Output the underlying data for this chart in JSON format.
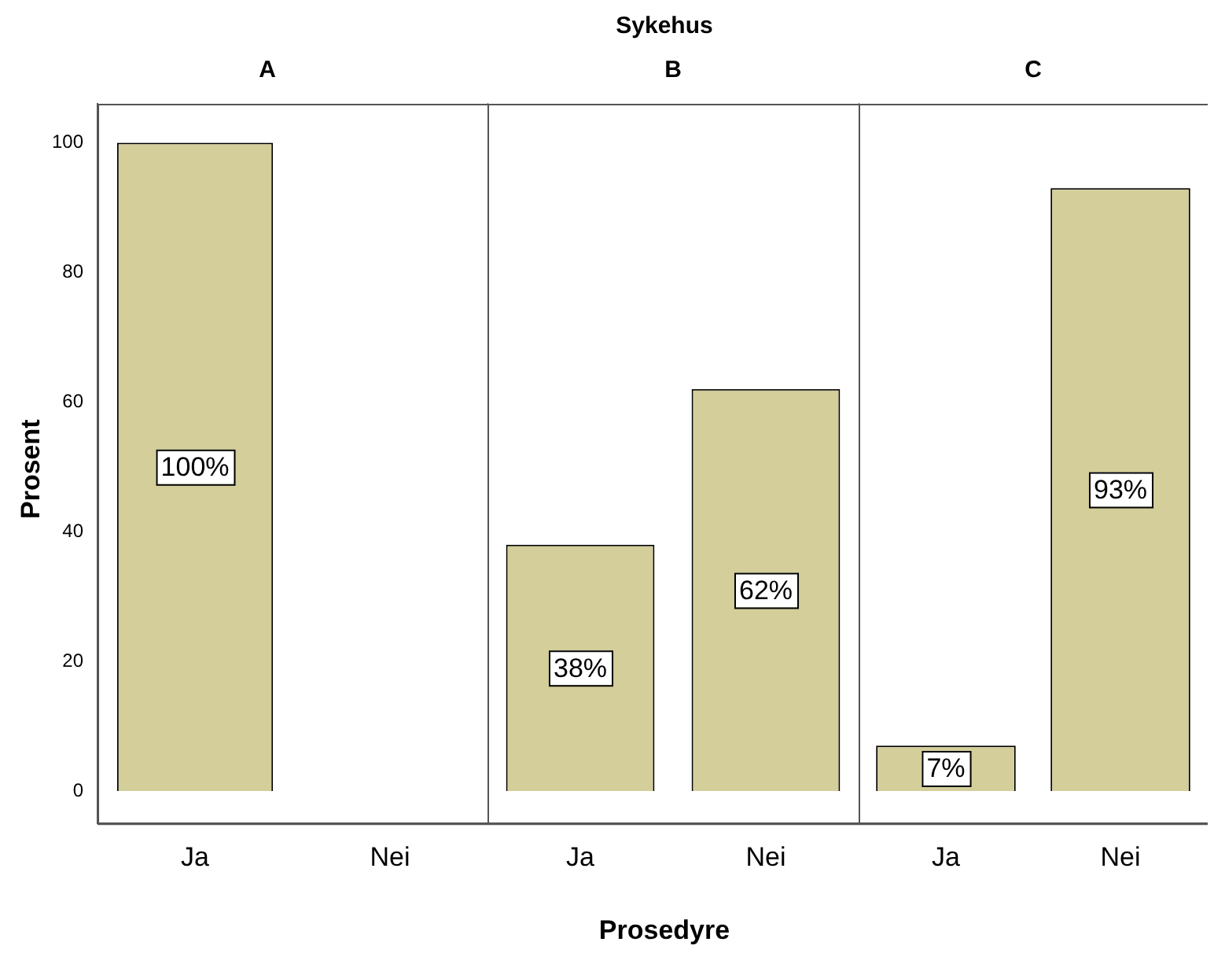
{
  "chart_data": [
    {
      "type": "bar",
      "title": "A",
      "ylabel": "Prosent",
      "categories": [
        "Ja",
        "Nei"
      ],
      "values": [
        100,
        null
      ],
      "value_labels": [
        "100%",
        null
      ],
      "color": "#d3ce9a",
      "ylim": [
        -5,
        106
      ],
      "yticks": [
        0,
        20,
        40,
        60,
        80,
        100
      ]
    },
    {
      "type": "bar",
      "title": "B",
      "xlabel": "Prosedyre",
      "annotations": [
        "Sykehus"
      ],
      "categories": [
        "Ja",
        "Nei"
      ],
      "values": [
        38,
        62
      ],
      "value_labels": [
        "38%",
        "62%"
      ],
      "color": "#d3ce9a",
      "ylim": [
        -5,
        106
      ],
      "yticks": [
        0,
        20,
        40,
        60,
        80,
        100
      ],
      "tick_labels": "x"
    },
    {
      "type": "bar",
      "title": "C",
      "categories": [
        "Ja",
        "Nei"
      ],
      "values": [
        7,
        93
      ],
      "value_labels": [
        "7%",
        "93%"
      ],
      "color": "#d3ce9a",
      "ylim": [
        -5,
        106
      ],
      "yticks": [
        0,
        20,
        40,
        60,
        80,
        100
      ],
      "tick_labels": "x"
    }
  ]
}
